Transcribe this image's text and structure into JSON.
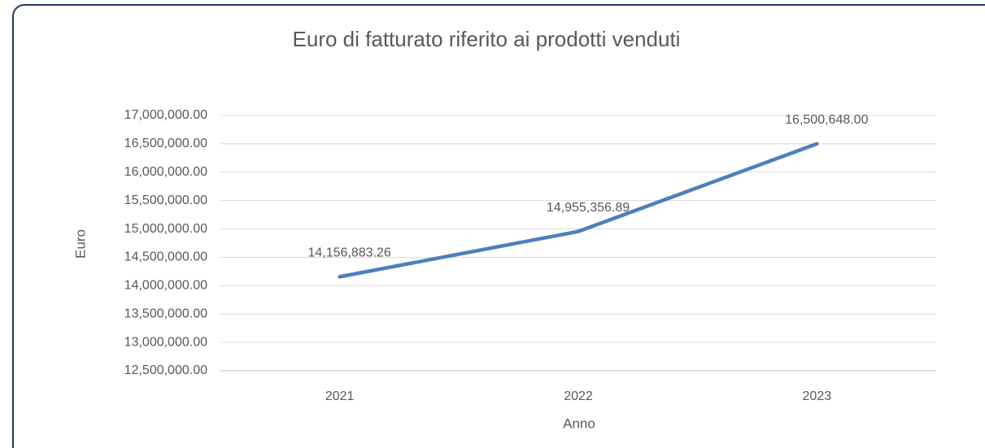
{
  "chart_data": {
    "type": "line",
    "title": "Euro di fatturato riferito ai prodotti venduti",
    "x_label": "Anno",
    "y_label": "Euro",
    "categories": [
      "2021",
      "2022",
      "2023"
    ],
    "series": [
      {
        "name": "Euro",
        "color": "#4f7fbc",
        "values": [
          14156883.26,
          14955356.89,
          16500648.0
        ],
        "value_labels": [
          "14,156,883.26",
          "14,955,356.89",
          "16,500,648.00"
        ]
      }
    ],
    "ylim": [
      12500000,
      17000000
    ],
    "yticks": [
      {
        "value": 12500000,
        "label": "12,500,000.00"
      },
      {
        "value": 13000000,
        "label": "13,000,000.00"
      },
      {
        "value": 13500000,
        "label": "13,500,000.00"
      },
      {
        "value": 14000000,
        "label": "14,000,000.00"
      },
      {
        "value": 14500000,
        "label": "14,500,000.00"
      },
      {
        "value": 15000000,
        "label": "15,000,000.00"
      },
      {
        "value": 15500000,
        "label": "15,500,000.00"
      },
      {
        "value": 16000000,
        "label": "16,000,000.00"
      },
      {
        "value": 16500000,
        "label": "16,500,000.00"
      },
      {
        "value": 17000000,
        "label": "17,000,000.00"
      }
    ],
    "grid": true
  }
}
